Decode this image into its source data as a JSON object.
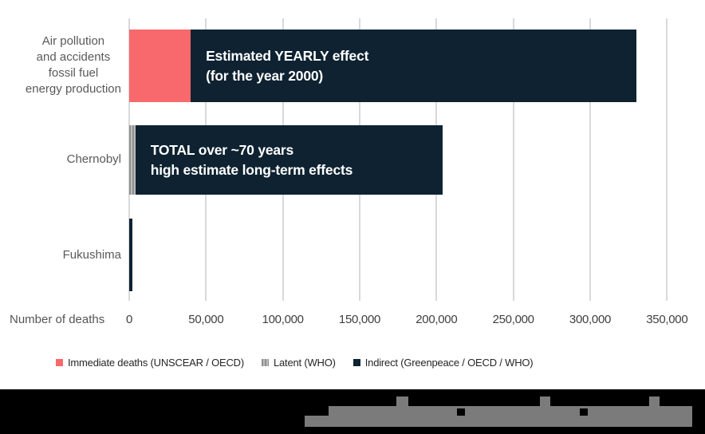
{
  "chart_data": {
    "type": "bar",
    "orientation": "horizontal",
    "title": "",
    "xlabel": "Number of deaths",
    "ylabel": "",
    "xlim": [
      0,
      350000
    ],
    "grid": true,
    "legend_position": "bottom",
    "tick_values": [
      0,
      50000,
      100000,
      150000,
      200000,
      250000,
      300000,
      350000
    ],
    "tick_labels": [
      "0",
      "50,000",
      "100,000",
      "150,000",
      "200,000",
      "250,000",
      "300,000",
      "350,000"
    ],
    "categories": [
      "Air pollution and accidents fossil fuel energy production",
      "Chernobyl",
      "Fukushima"
    ],
    "series": [
      {
        "name": "Immediate deaths (UNSCEAR / OECD)",
        "color": "#f7696c",
        "pattern": "solid",
        "values": [
          40000,
          0,
          0
        ]
      },
      {
        "name": "Latent (WHO)",
        "color": "#9c9c9c",
        "pattern": "stippled",
        "values": [
          0,
          4000,
          0
        ]
      },
      {
        "name": "Indirect (Greenpeace / OECD / WHO)",
        "color": "#0e2231",
        "pattern": "solid",
        "values": [
          290000,
          200000,
          2000
        ]
      }
    ],
    "annotations": [
      {
        "bar": 0,
        "text": "Estimated YEARLY effect (for the year 2000)"
      },
      {
        "bar": 1,
        "text": "TOTAL over ~70 years high estimate long-term effects"
      }
    ]
  },
  "rows": [
    {
      "label_lines": [
        "Air pollution",
        "and accidents",
        "fossil fuel",
        "energy production"
      ],
      "annotation_lines": [
        "Estimated YEARLY effect",
        "(for the year 2000)"
      ]
    },
    {
      "label_lines": [
        "Chernobyl"
      ],
      "annotation_lines": [
        "TOTAL over ~70 years",
        "high estimate long-term effects"
      ]
    },
    {
      "label_lines": [
        "Fukushima"
      ],
      "annotation_lines": []
    }
  ],
  "axis": {
    "label": "Number of deaths"
  },
  "legend": {
    "items": [
      {
        "label": "Immediate deaths (UNSCEAR / OECD)",
        "color": "#f7696c",
        "pattern": "solid"
      },
      {
        "label": "Latent (WHO)",
        "color": "#9c9c9c",
        "pattern": "stippled"
      },
      {
        "label": "Indirect (Greenpeace / OECD / WHO)",
        "color": "#0e2231",
        "pattern": "solid"
      }
    ]
  },
  "colors": {
    "immediate": "#f7696c",
    "latent": "#9c9c9c",
    "indirect": "#0e2231",
    "gridline": "#d9d9d9",
    "category_text": "#595959",
    "tick_text": "#404040",
    "footer_background": "#000000"
  },
  "footer": {
    "redacted": true
  }
}
